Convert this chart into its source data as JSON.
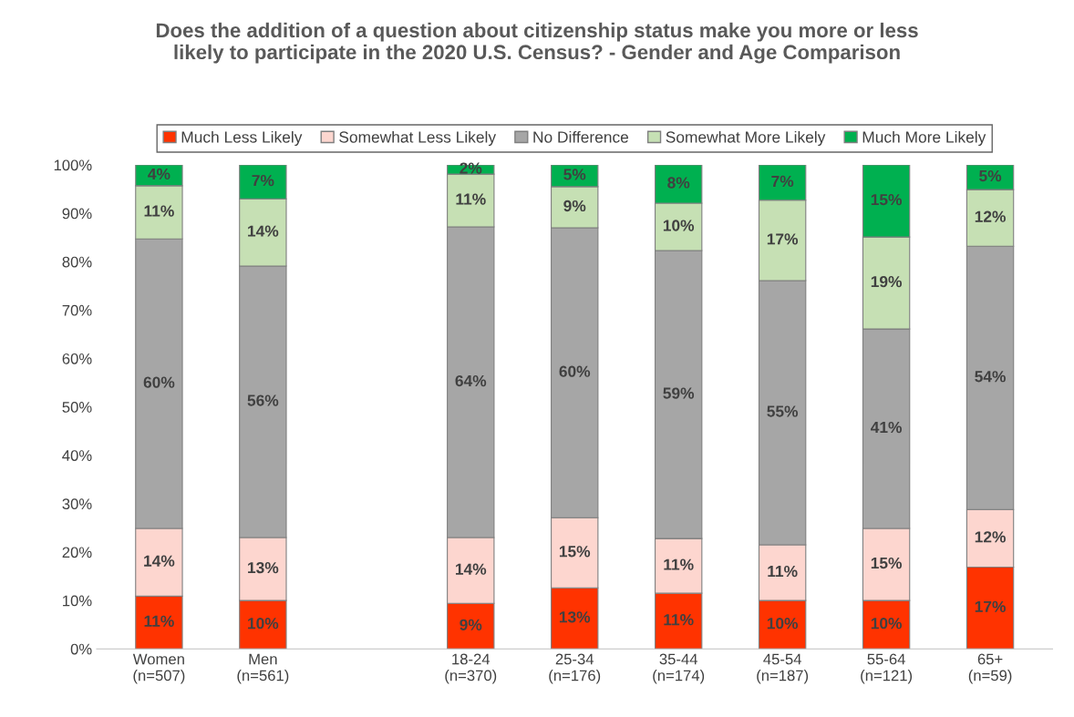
{
  "chart_data": {
    "type": "bar",
    "stacked": true,
    "title": "Does the addition of a question about citizenship status make you more or less\nlikely to participate in the 2020 U.S. Census? - Gender and Age Comparison",
    "categories": [
      "Women\n(n=507)",
      "Men\n(n=561)",
      null,
      "18-24\n(n=370)",
      "25-34\n(n=176)",
      "35-44\n(n=174)",
      "45-54\n(n=187)",
      "55-64\n(n=121)",
      "65+\n(n=59)"
    ],
    "series": [
      {
        "name": "Much Less Likely",
        "color": "#ff3300",
        "values": [
          10.9,
          10.0,
          null,
          9.4,
          12.6,
          11.5,
          10.0,
          10.0,
          16.9
        ],
        "value_labels": [
          "11%",
          "10%",
          null,
          "9%",
          "13%",
          "11%",
          "10%",
          "10%",
          "17%"
        ]
      },
      {
        "name": "Somewhat Less Likely",
        "color": "#fdd6cf",
        "values": [
          14.0,
          13.0,
          null,
          13.6,
          14.5,
          11.3,
          11.5,
          14.9,
          11.9
        ],
        "value_labels": [
          "14%",
          "13%",
          null,
          "14%",
          "15%",
          "11%",
          "11%",
          "15%",
          "12%"
        ]
      },
      {
        "name": "No Difference",
        "color": "#a6a6a6",
        "values": [
          59.8,
          56.1,
          null,
          64.2,
          59.9,
          59.5,
          54.6,
          41.2,
          54.4
        ],
        "value_labels": [
          "60%",
          "56%",
          null,
          "64%",
          "60%",
          "59%",
          "55%",
          "41%",
          "54%"
        ]
      },
      {
        "name": "Somewhat More Likely",
        "color": "#c6e0b4",
        "values": [
          11.0,
          13.9,
          null,
          10.9,
          8.5,
          9.8,
          16.6,
          19.0,
          11.7
        ],
        "value_labels": [
          "11%",
          "14%",
          null,
          "11%",
          "9%",
          "10%",
          "17%",
          "19%",
          "12%"
        ]
      },
      {
        "name": "Much More Likely",
        "color": "#00b050",
        "values": [
          4.3,
          7.0,
          null,
          1.9,
          4.5,
          7.9,
          7.3,
          14.9,
          5.1
        ],
        "value_labels": [
          "4%",
          "7%",
          null,
          "2%",
          "5%",
          "8%",
          "7%",
          "15%",
          "5%"
        ]
      }
    ],
    "ylim": [
      0,
      100
    ],
    "yticks": [
      {
        "value": 0,
        "label": "0%"
      },
      {
        "value": 10,
        "label": "10%"
      },
      {
        "value": 20,
        "label": "20%"
      },
      {
        "value": 30,
        "label": "30%"
      },
      {
        "value": 40,
        "label": "40%"
      },
      {
        "value": 50,
        "label": "50%"
      },
      {
        "value": 60,
        "label": "60%"
      },
      {
        "value": 70,
        "label": "70%"
      },
      {
        "value": 80,
        "label": "80%"
      },
      {
        "value": 90,
        "label": "90%"
      },
      {
        "value": 100,
        "label": "100%"
      }
    ],
    "grid": false,
    "legend": "top"
  }
}
